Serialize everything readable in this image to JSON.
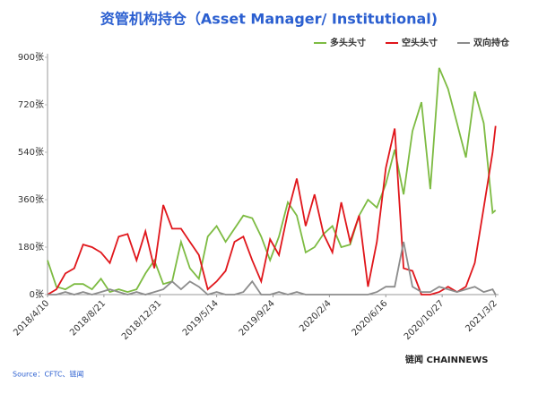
{
  "chart_data": {
    "type": "line",
    "title": "资管机构持仓（Asset Manager/ Institutional)",
    "source": "Source：CFTC、链闻",
    "brand": "链闻 CHAINNEWS",
    "legend": "top-right",
    "grid": false,
    "x": [
      "2018/4/10",
      "2018/5/1",
      "2018/5/22",
      "2018/6/12",
      "2018/7/3",
      "2018/7/24",
      "2018/8/14",
      "2018/9/4",
      "2018/9/25",
      "2018/10/16",
      "2018/11/6",
      "2018/11/27",
      "2018/12/18",
      "2019/1/8",
      "2019/1/29",
      "2019/2/19",
      "2019/3/12",
      "2019/4/2",
      "2019/4/23",
      "2019/5/14",
      "2019/6/4",
      "2019/6/25",
      "2019/7/16",
      "2019/8/6",
      "2019/8/27",
      "2019/9/17",
      "2019/10/8",
      "2019/10/29",
      "2019/11/19",
      "2019/12/10",
      "2019/12/31",
      "2020/1/21",
      "2020/2/11",
      "2020/3/3",
      "2020/3/24",
      "2020/4/14",
      "2020/5/5",
      "2020/5/26",
      "2020/6/16",
      "2020/7/7",
      "2020/7/28",
      "2020/8/18",
      "2020/9/8",
      "2020/9/29",
      "2020/10/20",
      "2020/11/10",
      "2020/12/1",
      "2020/12/22",
      "2021/1/12",
      "2021/2/2",
      "2021/2/23",
      "2021/3/2"
    ],
    "xlim": [
      "2018/4/10",
      "2021/3/9"
    ],
    "xticks": [
      "2018/4/10",
      "2018/8/21",
      "2018/12/31",
      "2019/5/14",
      "2019/9/24",
      "2020/2/4",
      "2020/6/16",
      "2020/10/27",
      "2021/3/2"
    ],
    "ylim": [
      0,
      900
    ],
    "yticks": [
      {
        "value": 0,
        "label": "0张"
      },
      {
        "value": 180,
        "label": "180张"
      },
      {
        "value": 360,
        "label": "360张"
      },
      {
        "value": 540,
        "label": "540张"
      },
      {
        "value": 720,
        "label": "720张"
      },
      {
        "value": 900,
        "label": "900张"
      }
    ],
    "series": [
      {
        "name": "多头头寸",
        "color": "#7dbb42",
        "values": [
          130,
          30,
          20,
          40,
          40,
          20,
          60,
          10,
          20,
          10,
          20,
          80,
          130,
          40,
          50,
          200,
          100,
          60,
          220,
          260,
          200,
          250,
          300,
          290,
          220,
          130,
          220,
          350,
          300,
          160,
          180,
          230,
          260,
          180,
          190,
          300,
          360,
          330,
          420,
          550,
          380,
          620,
          730,
          400,
          860,
          780,
          650,
          520,
          770,
          650,
          310,
          320
        ]
      },
      {
        "name": "空头头寸",
        "color": "#e0161b",
        "values": [
          0,
          20,
          80,
          100,
          190,
          180,
          160,
          120,
          220,
          230,
          130,
          240,
          100,
          340,
          250,
          250,
          200,
          150,
          20,
          50,
          90,
          200,
          220,
          130,
          50,
          210,
          150,
          310,
          440,
          260,
          380,
          230,
          160,
          350,
          200,
          300,
          30,
          200,
          480,
          630,
          100,
          90,
          0,
          0,
          10,
          30,
          10,
          30,
          120,
          330,
          540,
          640
        ]
      },
      {
        "name": "双向持仓",
        "color": "#8c8c8c",
        "values": [
          0,
          0,
          10,
          0,
          10,
          0,
          10,
          20,
          10,
          0,
          10,
          0,
          10,
          20,
          50,
          20,
          50,
          30,
          0,
          10,
          0,
          0,
          10,
          50,
          0,
          0,
          10,
          0,
          10,
          0,
          0,
          0,
          0,
          0,
          0,
          0,
          0,
          10,
          30,
          30,
          200,
          30,
          10,
          10,
          30,
          20,
          10,
          20,
          30,
          10,
          20,
          0
        ]
      }
    ]
  }
}
